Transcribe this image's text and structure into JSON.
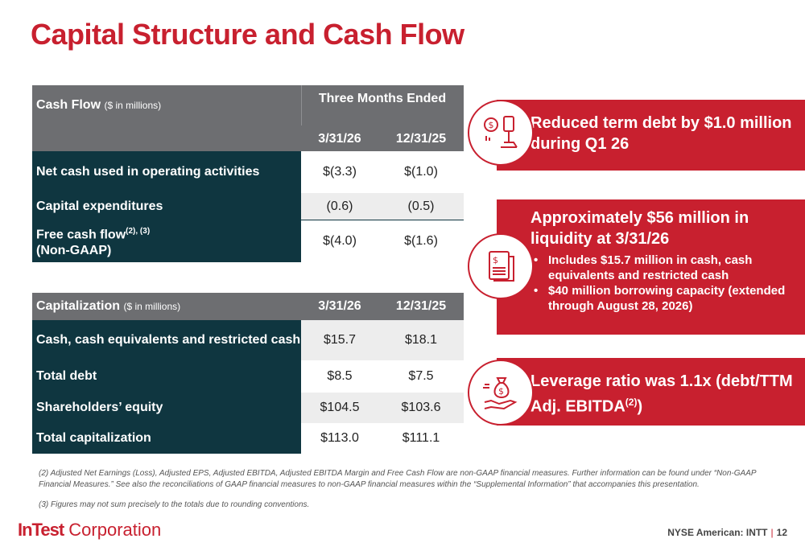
{
  "title": "Capital Structure and Cash Flow",
  "cash_flow": {
    "label": "Cash Flow",
    "unit": "($ in millions)",
    "period_header": "Three Months Ended",
    "cols": [
      "3/31/26",
      "12/31/25"
    ],
    "rows": [
      {
        "label": "Net cash used in operating activities",
        "v1": "$(3.3)",
        "v2": "$(1.0)"
      },
      {
        "label": "Capital expenditures",
        "v1": "(0.6)",
        "v2": "(0.5)"
      },
      {
        "label": "Free cash flow",
        "sup": "(2), (3)",
        "label2": "(Non-GAAP)",
        "v1": "$(4.0)",
        "v2": "$(1.6)"
      }
    ]
  },
  "capitalization": {
    "label": "Capitalization",
    "unit": "($ in millions)",
    "cols": [
      "3/31/26",
      "12/31/25"
    ],
    "rows": [
      {
        "label": "Cash, cash equivalents and restricted cash",
        "v1": "$15.7",
        "v2": "$18.1"
      },
      {
        "label": "Total debt",
        "v1": "$8.5",
        "v2": "$7.5"
      },
      {
        "label": "Shareholders’ equity",
        "v1": "$104.5",
        "v2": "$103.6"
      },
      {
        "label": "Total capitalization",
        "v1": "$113.0",
        "v2": "$111.1"
      }
    ]
  },
  "callouts": [
    {
      "head": "Reduced term debt by $1.0 million during Q1 26",
      "icon": "debt-reduction-icon"
    },
    {
      "head": "Approximately $56 million in liquidity at 3/31/26",
      "icon": "document-dollar-icon",
      "bullets": [
        "Includes $15.7 million in cash, cash equivalents and restricted cash",
        "$40 million borrowing capacity (extended through August 28, 2026)"
      ]
    },
    {
      "head": "Leverage ratio was 1.1x (debt/TTM Adj. EBITDA",
      "sup": "(2)",
      "tail": ")",
      "icon": "hand-money-bag-icon"
    }
  ],
  "footnotes": [
    "(2) Adjusted Net Earnings (Loss), Adjusted EPS, Adjusted EBITDA, Adjusted EBITDA Margin and Free Cash Flow are non-GAAP financial measures. Further information can be found under “Non-GAAP Financial Measures.” See also the reconciliations of GAAP financial measures to non-GAAP financial measures within the “Supplemental Information” that accompanies this presentation.",
    "(3) Figures may not sum precisely to the totals due to rounding conventions."
  ],
  "logo": {
    "bold": "InTest",
    "rest": " Corporation"
  },
  "ticker": "NYSE American: INTT",
  "page_number": "12",
  "colors": {
    "brand_red": "#c8202f",
    "dark_teal": "#0f3640",
    "header_gray": "#6d6e71"
  }
}
